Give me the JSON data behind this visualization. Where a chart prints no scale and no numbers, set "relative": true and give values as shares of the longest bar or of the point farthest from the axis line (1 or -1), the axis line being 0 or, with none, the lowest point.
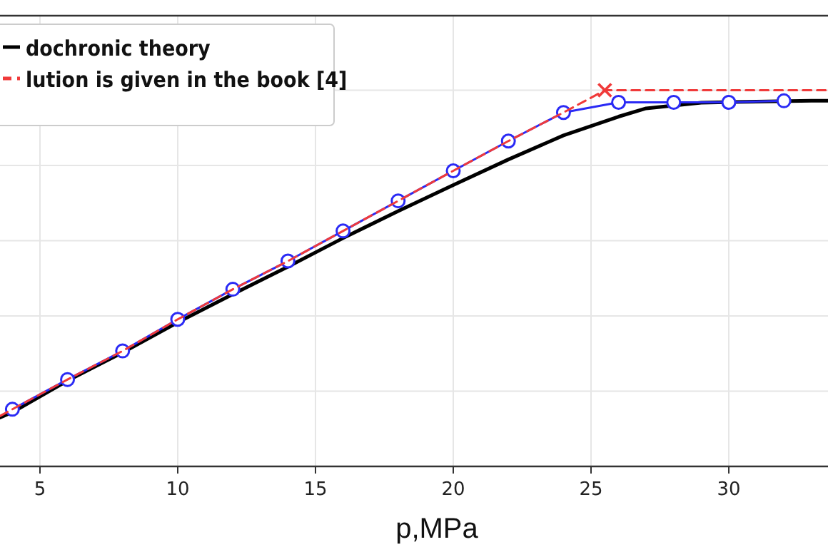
{
  "chart_data": {
    "type": "line",
    "xlabel": "p,MPa",
    "relative": true,
    "xlim": [
      3.55,
      33.6
    ],
    "xticks": [
      5,
      10,
      15,
      20,
      25,
      30
    ],
    "grid": true,
    "legend": "top left",
    "series": [
      {
        "name": "dochronic theory",
        "color": "#000000",
        "marker": "none",
        "line_style": "solid",
        "x": [
          3.55,
          4,
          6,
          8,
          10,
          12,
          14,
          16,
          18,
          20,
          22,
          24,
          26,
          27,
          29,
          31,
          33,
          33.6
        ],
        "values": [
          0.13,
          0.144,
          0.228,
          0.303,
          0.383,
          0.458,
          0.531,
          0.607,
          0.679,
          0.748,
          0.816,
          0.88,
          0.93,
          0.952,
          0.967,
          0.97,
          0.972,
          0.972
        ]
      },
      {
        "color": "#2a2af5",
        "marker": "circle",
        "line_style": "solid",
        "x": [
          4,
          6,
          8,
          10,
          12,
          14,
          16,
          18,
          20,
          22,
          24,
          26,
          28,
          30,
          32
        ],
        "values": [
          0.152,
          0.231,
          0.307,
          0.391,
          0.471,
          0.546,
          0.626,
          0.706,
          0.786,
          0.865,
          0.941,
          0.968,
          0.968,
          0.968,
          0.972
        ]
      },
      {
        "name": "lution is given in the book [4]",
        "color": "#f03a3a",
        "marker": "none",
        "line_style": "dashed",
        "x": [
          3.55,
          4,
          6,
          8,
          10,
          12,
          14,
          16,
          18,
          20,
          22,
          24,
          25.5,
          33.6
        ],
        "values": [
          0.134,
          0.152,
          0.231,
          0.307,
          0.391,
          0.471,
          0.546,
          0.626,
          0.706,
          0.786,
          0.865,
          0.941,
          1,
          1
        ]
      },
      {
        "type": "scatter",
        "color": "#f03a3a",
        "marker": "cross",
        "x": [
          25.5
        ],
        "values": [
          1
        ]
      }
    ]
  }
}
